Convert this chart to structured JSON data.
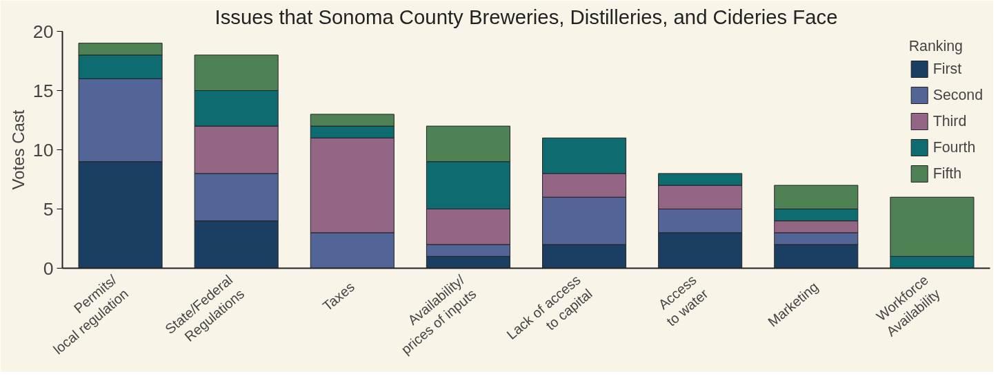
{
  "chart_data": {
    "type": "bar",
    "stacked": true,
    "title": "Issues that Sonoma County Breweries, Distilleries, and Cideries Face",
    "ylabel": "Votes Cast",
    "legend_title": "Ranking",
    "legend": "top right",
    "grid": false,
    "categories": [
      "Permits/\nlocal regulation",
      "State/Federal\nRegulations",
      "Taxes",
      "Availability/\nprices of inputs",
      "Lack of access\nto capital",
      "Access\nto water",
      "Marketing",
      "Workforce\nAvailability"
    ],
    "ylim": [
      0,
      20
    ],
    "yticks": [
      0,
      5,
      10,
      15,
      20
    ],
    "series": [
      {
        "name": "First",
        "color": "#1a3f62",
        "values": [
          9,
          4,
          0,
          1,
          2,
          3,
          2,
          0
        ]
      },
      {
        "name": "Second",
        "color": "#536496",
        "values": [
          7,
          4,
          3,
          1,
          4,
          2,
          1,
          0
        ]
      },
      {
        "name": "Third",
        "color": "#936685",
        "values": [
          0,
          4,
          8,
          3,
          2,
          2,
          1,
          0
        ]
      },
      {
        "name": "Fourth",
        "color": "#0e6b70",
        "values": [
          2,
          3,
          1,
          4,
          3,
          1,
          1,
          1
        ]
      },
      {
        "name": "Fifth",
        "color": "#4e8254",
        "values": [
          1,
          3,
          1,
          3,
          0,
          0,
          2,
          5
        ]
      }
    ]
  }
}
